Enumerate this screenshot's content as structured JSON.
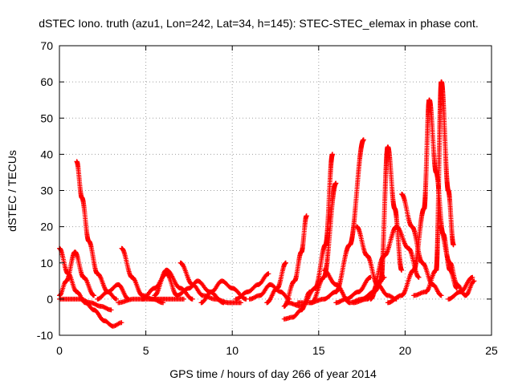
{
  "chart_data": {
    "type": "scatter",
    "title": "dSTEC Iono. truth (azu1, Lon=242, Lat=34, h=145): STEC-STEC_elemax in phase cont.",
    "xlabel": "GPS time / hours of day 266 of year 2014",
    "ylabel": "dSTEC  / TECUs",
    "xlim": [
      0,
      25
    ],
    "ylim": [
      -10,
      70
    ],
    "xticks": [
      "0",
      "5",
      "10",
      "15",
      "20",
      "25"
    ],
    "yticks": [
      "-10",
      "0",
      "10",
      "20",
      "30",
      "40",
      "50",
      "60",
      "70"
    ],
    "grid": true,
    "marker": "+",
    "color": "#ff0000",
    "series": [
      {
        "x": [
          1.0,
          1.3,
          1.7,
          2.2,
          2.8,
          3.3
        ],
        "y": [
          38,
          28,
          16,
          7,
          2,
          0
        ]
      },
      {
        "x": [
          0.0,
          0.5,
          1.0,
          1.5,
          2.0,
          2.6,
          3.1,
          3.6
        ],
        "y": [
          14,
          7,
          2,
          -1,
          -3,
          -6,
          -7.5,
          -6.5
        ]
      },
      {
        "x": [
          0.0,
          0.4,
          0.9,
          1.4,
          2.0
        ],
        "y": [
          1,
          5,
          13,
          6,
          1
        ]
      },
      {
        "x": [
          0.0,
          0.6,
          1.2,
          1.8,
          2.4,
          3.0
        ],
        "y": [
          0,
          0,
          0,
          -1,
          -2,
          -3
        ]
      },
      {
        "x": [
          2.2,
          2.8,
          3.4,
          4.0
        ],
        "y": [
          0,
          2,
          4,
          0
        ]
      },
      {
        "x": [
          3.6,
          4.2,
          4.8,
          5.4,
          6.0
        ],
        "y": [
          14,
          6,
          1,
          0,
          -1
        ]
      },
      {
        "x": [
          3.4,
          4.3,
          5.3,
          6.2,
          7.2
        ],
        "y": [
          -1,
          0,
          0,
          0,
          0
        ]
      },
      {
        "x": [
          4.8,
          5.5,
          6.2,
          6.8
        ],
        "y": [
          0,
          3,
          7,
          1
        ]
      },
      {
        "x": [
          5.5,
          6.2,
          7.0,
          7.7
        ],
        "y": [
          1,
          8,
          3,
          0
        ]
      },
      {
        "x": [
          7.0,
          7.7,
          8.3,
          9.0,
          9.8,
          10.5
        ],
        "y": [
          10,
          4,
          1,
          0,
          -1,
          -1
        ]
      },
      {
        "x": [
          6.8,
          7.5,
          8.0,
          8.7,
          9.5
        ],
        "y": [
          1,
          3,
          5,
          2,
          -1
        ]
      },
      {
        "x": [
          8.2,
          8.8,
          9.4,
          10.0,
          10.8
        ],
        "y": [
          -1,
          2,
          5,
          3,
          0
        ]
      },
      {
        "x": [
          10.2,
          10.9,
          11.5,
          12.1
        ],
        "y": [
          0,
          2,
          4,
          7
        ]
      },
      {
        "x": [
          11.0,
          11.6,
          12.2,
          12.8,
          13.3
        ],
        "y": [
          0,
          1,
          4,
          2,
          0
        ]
      },
      {
        "x": [
          12.0,
          12.6,
          13.1
        ],
        "y": [
          -1,
          3,
          10
        ]
      },
      {
        "x": [
          13.0,
          13.6,
          14.0,
          14.3
        ],
        "y": [
          -2,
          5,
          13,
          23
        ]
      },
      {
        "x": [
          13.0,
          13.5,
          14.0,
          14.5
        ],
        "y": [
          -5.5,
          -5,
          -3,
          2
        ]
      },
      {
        "x": [
          13.2,
          14.0,
          14.8,
          15.4,
          15.8
        ],
        "y": [
          -1,
          -2,
          3,
          15,
          40
        ]
      },
      {
        "x": [
          13.8,
          14.6,
          15.3,
          16.0
        ],
        "y": [
          -1,
          -1,
          6,
          32
        ]
      },
      {
        "x": [
          14.5,
          15.3,
          16.0,
          16.8,
          17.6
        ],
        "y": [
          -1,
          0,
          2,
          15,
          44
        ]
      },
      {
        "x": [
          15.3,
          16.0,
          16.8,
          17.5,
          18.2,
          18.8
        ],
        "y": [
          8,
          4,
          -1,
          0,
          2,
          6
        ]
      },
      {
        "x": [
          16.0,
          16.6,
          17.3,
          18.0
        ],
        "y": [
          -1,
          0,
          2,
          6
        ]
      },
      {
        "x": [
          17.2,
          17.8,
          18.4,
          19.0,
          19.5
        ],
        "y": [
          20,
          12,
          4,
          1,
          0
        ]
      },
      {
        "x": [
          17.0,
          17.8,
          18.6,
          19.0,
          19.4,
          19.8
        ],
        "y": [
          -1,
          0,
          5,
          42,
          25,
          8
        ]
      },
      {
        "x": [
          18.0,
          18.8,
          19.5,
          20.2,
          20.8
        ],
        "y": [
          0,
          12,
          20,
          14,
          6
        ]
      },
      {
        "x": [
          19.0,
          19.8,
          20.5,
          21.1,
          21.4,
          21.8,
          22.2,
          22.6,
          23.0
        ],
        "y": [
          -1,
          1,
          8,
          25,
          55,
          35,
          18,
          8,
          3
        ]
      },
      {
        "x": [
          19.8,
          20.4,
          21.0,
          21.6,
          22.1
        ],
        "y": [
          29,
          20,
          10,
          4,
          1
        ]
      },
      {
        "x": [
          20.5,
          21.2,
          21.8,
          22.1,
          22.5,
          22.8
        ],
        "y": [
          1,
          2,
          8,
          60,
          30,
          15
        ]
      },
      {
        "x": [
          22.0,
          22.6,
          23.0,
          23.5,
          24.0
        ],
        "y": [
          20,
          10,
          4,
          1,
          5
        ]
      },
      {
        "x": [
          22.5,
          23.2,
          23.9
        ],
        "y": [
          0,
          2,
          6
        ]
      }
    ]
  }
}
